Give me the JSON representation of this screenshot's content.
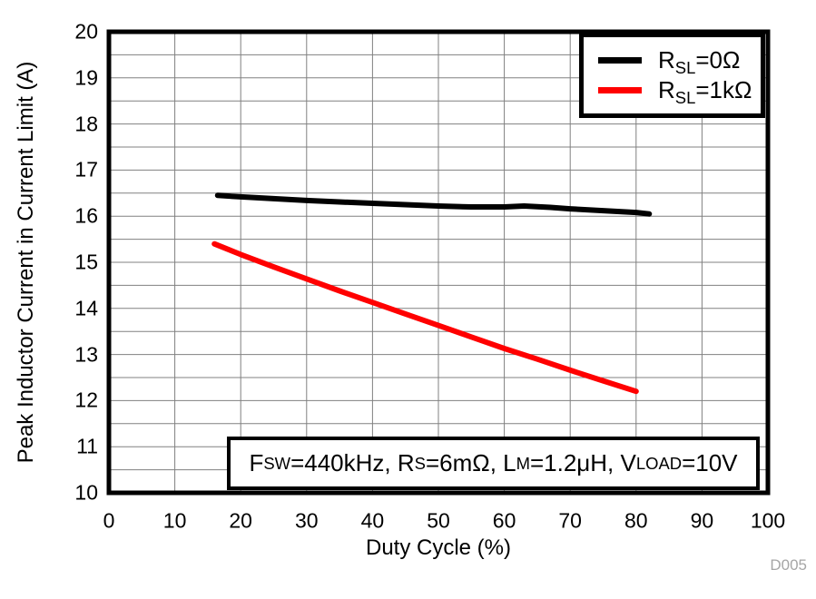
{
  "watermark": "D005",
  "chart_data": {
    "type": "line",
    "xlabel": "Duty Cycle (%)",
    "ylabel": "Peak Inductor Current in Current Limit (A)",
    "xlim": [
      0,
      100
    ],
    "ylim": [
      10,
      20
    ],
    "x_ticks": [
      0,
      10,
      20,
      30,
      40,
      50,
      60,
      70,
      80,
      90,
      100
    ],
    "y_ticks": [
      10,
      11,
      12,
      13,
      14,
      15,
      16,
      17,
      18,
      19,
      20
    ],
    "x_gridlines": [
      10,
      20,
      30,
      40,
      50,
      60,
      70,
      80,
      90
    ],
    "y_gridlines": [
      10.5,
      11,
      11.5,
      12,
      12.5,
      13,
      13.5,
      14,
      14.5,
      15,
      15.5,
      16,
      16.5,
      17,
      17.5,
      18,
      18.5,
      19,
      19.5
    ],
    "grid_on": true,
    "grid_color": "#808080",
    "legend_position": "top-right",
    "series": [
      {
        "name": "R_{SL}=0Ω",
        "color": "#000000",
        "points": [
          [
            16.5,
            16.45
          ],
          [
            20,
            16.42
          ],
          [
            25,
            16.38
          ],
          [
            30,
            16.34
          ],
          [
            35,
            16.31
          ],
          [
            40,
            16.28
          ],
          [
            45,
            16.25
          ],
          [
            50,
            16.22
          ],
          [
            55,
            16.2
          ],
          [
            60,
            16.2
          ],
          [
            63,
            16.22
          ],
          [
            67,
            16.19
          ],
          [
            70,
            16.16
          ],
          [
            75,
            16.12
          ],
          [
            80,
            16.08
          ],
          [
            82,
            16.05
          ]
        ]
      },
      {
        "name": "R_{SL}=1kΩ",
        "color": "#ff0000",
        "points": [
          [
            16,
            15.4
          ],
          [
            20,
            15.17
          ],
          [
            25,
            14.9
          ],
          [
            30,
            14.64
          ],
          [
            35,
            14.38
          ],
          [
            40,
            14.13
          ],
          [
            45,
            13.88
          ],
          [
            50,
            13.63
          ],
          [
            55,
            13.38
          ],
          [
            60,
            13.13
          ],
          [
            65,
            12.9
          ],
          [
            70,
            12.66
          ],
          [
            75,
            12.43
          ],
          [
            80,
            12.2
          ]
        ]
      }
    ],
    "annotation": "F_{SW}=440kHz, R_{S}=6mΩ, L_{M}=1.2μH, V_{LOAD}=10V"
  }
}
